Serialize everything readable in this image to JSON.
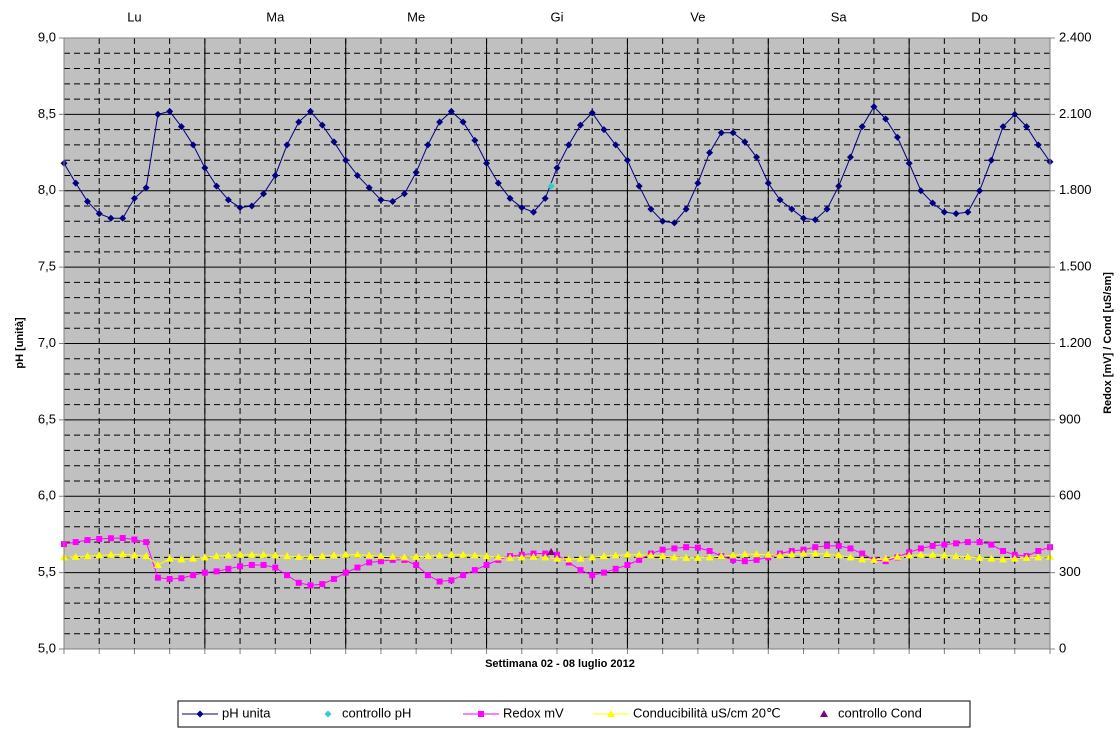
{
  "chart_data": {
    "type": "line",
    "categories": [
      "Lu",
      "Ma",
      "Me",
      "Gi",
      "Ve",
      "Sa",
      "Do"
    ],
    "x_label": "Settimana  02 - 08  luglio 2012",
    "y_label": "pH [unità]",
    "y2_label": "Redox [mV] / Cond [uS/sm]",
    "xlim": [
      0,
      168
    ],
    "xticks": [
      0,
      6,
      12,
      18,
      24,
      30,
      36,
      42,
      48,
      54,
      60,
      66,
      72,
      78,
      84,
      90,
      96,
      102,
      108,
      114,
      120,
      126,
      132,
      138,
      144,
      150,
      156,
      162,
      168
    ],
    "ylim": [
      5,
      9
    ],
    "yticks": [
      {
        "value": 5,
        "label": "5,0"
      },
      {
        "value": 5.5,
        "label": "5,5"
      },
      {
        "value": 6,
        "label": "6,0"
      },
      {
        "value": 6.5,
        "label": "6,5"
      },
      {
        "value": 7,
        "label": "7,0"
      },
      {
        "value": 7.5,
        "label": "7,5"
      },
      {
        "value": 8,
        "label": "8,0"
      },
      {
        "value": 8.5,
        "label": "8,5"
      },
      {
        "value": 9,
        "label": "9,0"
      }
    ],
    "yminorticks": [
      5.1,
      5.2,
      5.3,
      5.4,
      5.6,
      5.7,
      5.8,
      5.9,
      6.1,
      6.2,
      6.3,
      6.4,
      6.6,
      6.7,
      6.8,
      6.9,
      7.1,
      7.2,
      7.3,
      7.4,
      7.6,
      7.7,
      7.8,
      7.9,
      8.1,
      8.2,
      8.3,
      8.4,
      8.6,
      8.7,
      8.8,
      8.9
    ],
    "y2lim": [
      0,
      2400
    ],
    "y2ticks": [
      0,
      300,
      600,
      900,
      {
        "value": 1200,
        "label": "1.200"
      },
      {
        "value": 1500,
        "label": "1.500"
      },
      {
        "value": 1800,
        "label": "1.800"
      },
      {
        "value": 2100,
        "label": "2.100"
      },
      {
        "value": 2400,
        "label": "2.400"
      }
    ],
    "grid": true,
    "legend": "bottom",
    "x": [
      0,
      2,
      4,
      6,
      8,
      10,
      12,
      14,
      16,
      18,
      20,
      22,
      24,
      26,
      28,
      30,
      32,
      34,
      36,
      38,
      40,
      42,
      44,
      46,
      48,
      50,
      52,
      54,
      56,
      58,
      60,
      62,
      64,
      66,
      68,
      70,
      72,
      74,
      76,
      78,
      80,
      82,
      84,
      86,
      88,
      90,
      92,
      94,
      96,
      98,
      100,
      102,
      104,
      106,
      108,
      110,
      112,
      114,
      116,
      118,
      120,
      122,
      124,
      126,
      128,
      130,
      132,
      134,
      136,
      138,
      140,
      142,
      144,
      146,
      148,
      150,
      152,
      154,
      156,
      158,
      160,
      162,
      164,
      166,
      168
    ],
    "series": [
      {
        "name": "pH unita",
        "color": "#000080",
        "marker": "diamond",
        "line": true,
        "values": [
          8.18,
          8.05,
          7.93,
          7.85,
          7.82,
          7.82,
          7.95,
          8.02,
          8.5,
          8.52,
          8.42,
          8.3,
          8.15,
          8.03,
          7.94,
          7.89,
          7.9,
          7.98,
          8.1,
          8.3,
          8.45,
          8.52,
          8.43,
          8.32,
          8.2,
          8.1,
          8.02,
          7.94,
          7.93,
          7.98,
          8.12,
          8.3,
          8.45,
          8.52,
          8.45,
          8.33,
          8.18,
          8.05,
          7.95,
          7.89,
          7.86,
          7.95,
          8.15,
          8.3,
          8.43,
          8.51,
          8.4,
          8.3,
          8.2,
          8.03,
          7.88,
          7.8,
          7.79,
          7.88,
          8.05,
          8.25,
          8.38,
          8.38,
          8.32,
          8.22,
          8.05,
          7.94,
          7.88,
          7.82,
          7.81,
          7.88,
          8.03,
          8.22,
          8.42,
          8.55,
          8.47,
          8.35,
          8.18,
          8.0,
          7.92,
          7.86,
          7.85,
          7.86,
          8.0,
          8.2,
          8.42,
          8.5,
          8.42,
          8.3,
          8.19
        ]
      },
      {
        "name": "controllo pH",
        "color": "#33cccc",
        "marker": "diamond",
        "line": false,
        "x": [
          83
        ],
        "values": [
          8.03
        ]
      },
      {
        "name": "Redox mV",
        "color": "#ff00ff",
        "marker": "square",
        "line": true,
        "axis": "y2",
        "values": [
          412,
          420,
          428,
          432,
          435,
          436,
          430,
          420,
          280,
          275,
          278,
          290,
          300,
          305,
          315,
          325,
          330,
          330,
          320,
          290,
          260,
          250,
          255,
          275,
          300,
          320,
          340,
          345,
          350,
          350,
          330,
          290,
          265,
          270,
          290,
          310,
          330,
          350,
          365,
          370,
          375,
          375,
          370,
          340,
          310,
          290,
          300,
          315,
          330,
          350,
          375,
          390,
          395,
          400,
          398,
          385,
          365,
          350,
          345,
          350,
          360,
          375,
          385,
          390,
          400,
          405,
          405,
          395,
          375,
          350,
          345,
          360,
          380,
          395,
          405,
          410,
          415,
          420,
          420,
          410,
          385,
          370,
          365,
          385,
          400
        ]
      },
      {
        "name": "Conducibilità uS/cm 20℃",
        "color": "#ffff00",
        "marker": "triangle",
        "line": true,
        "axis": "y2",
        "values": [
          360,
          362,
          365,
          368,
          370,
          372,
          368,
          365,
          330,
          355,
          352,
          355,
          360,
          365,
          368,
          370,
          370,
          370,
          368,
          365,
          362,
          362,
          365,
          368,
          370,
          370,
          368,
          365,
          362,
          360,
          362,
          365,
          368,
          370,
          370,
          368,
          365,
          360,
          358,
          360,
          362,
          360,
          355,
          352,
          355,
          360,
          365,
          368,
          370,
          370,
          368,
          365,
          360,
          358,
          358,
          360,
          365,
          368,
          372,
          372,
          370,
          368,
          372,
          375,
          375,
          372,
          368,
          360,
          352,
          350,
          355,
          362,
          368,
          370,
          370,
          368,
          365,
          362,
          358,
          355,
          352,
          355,
          358,
          360,
          362
        ]
      },
      {
        "name": "controllo Cond",
        "color": "#800080",
        "marker": "triangle",
        "line": false,
        "axis": "y2",
        "x": [
          83
        ],
        "values": [
          381
        ]
      }
    ]
  }
}
